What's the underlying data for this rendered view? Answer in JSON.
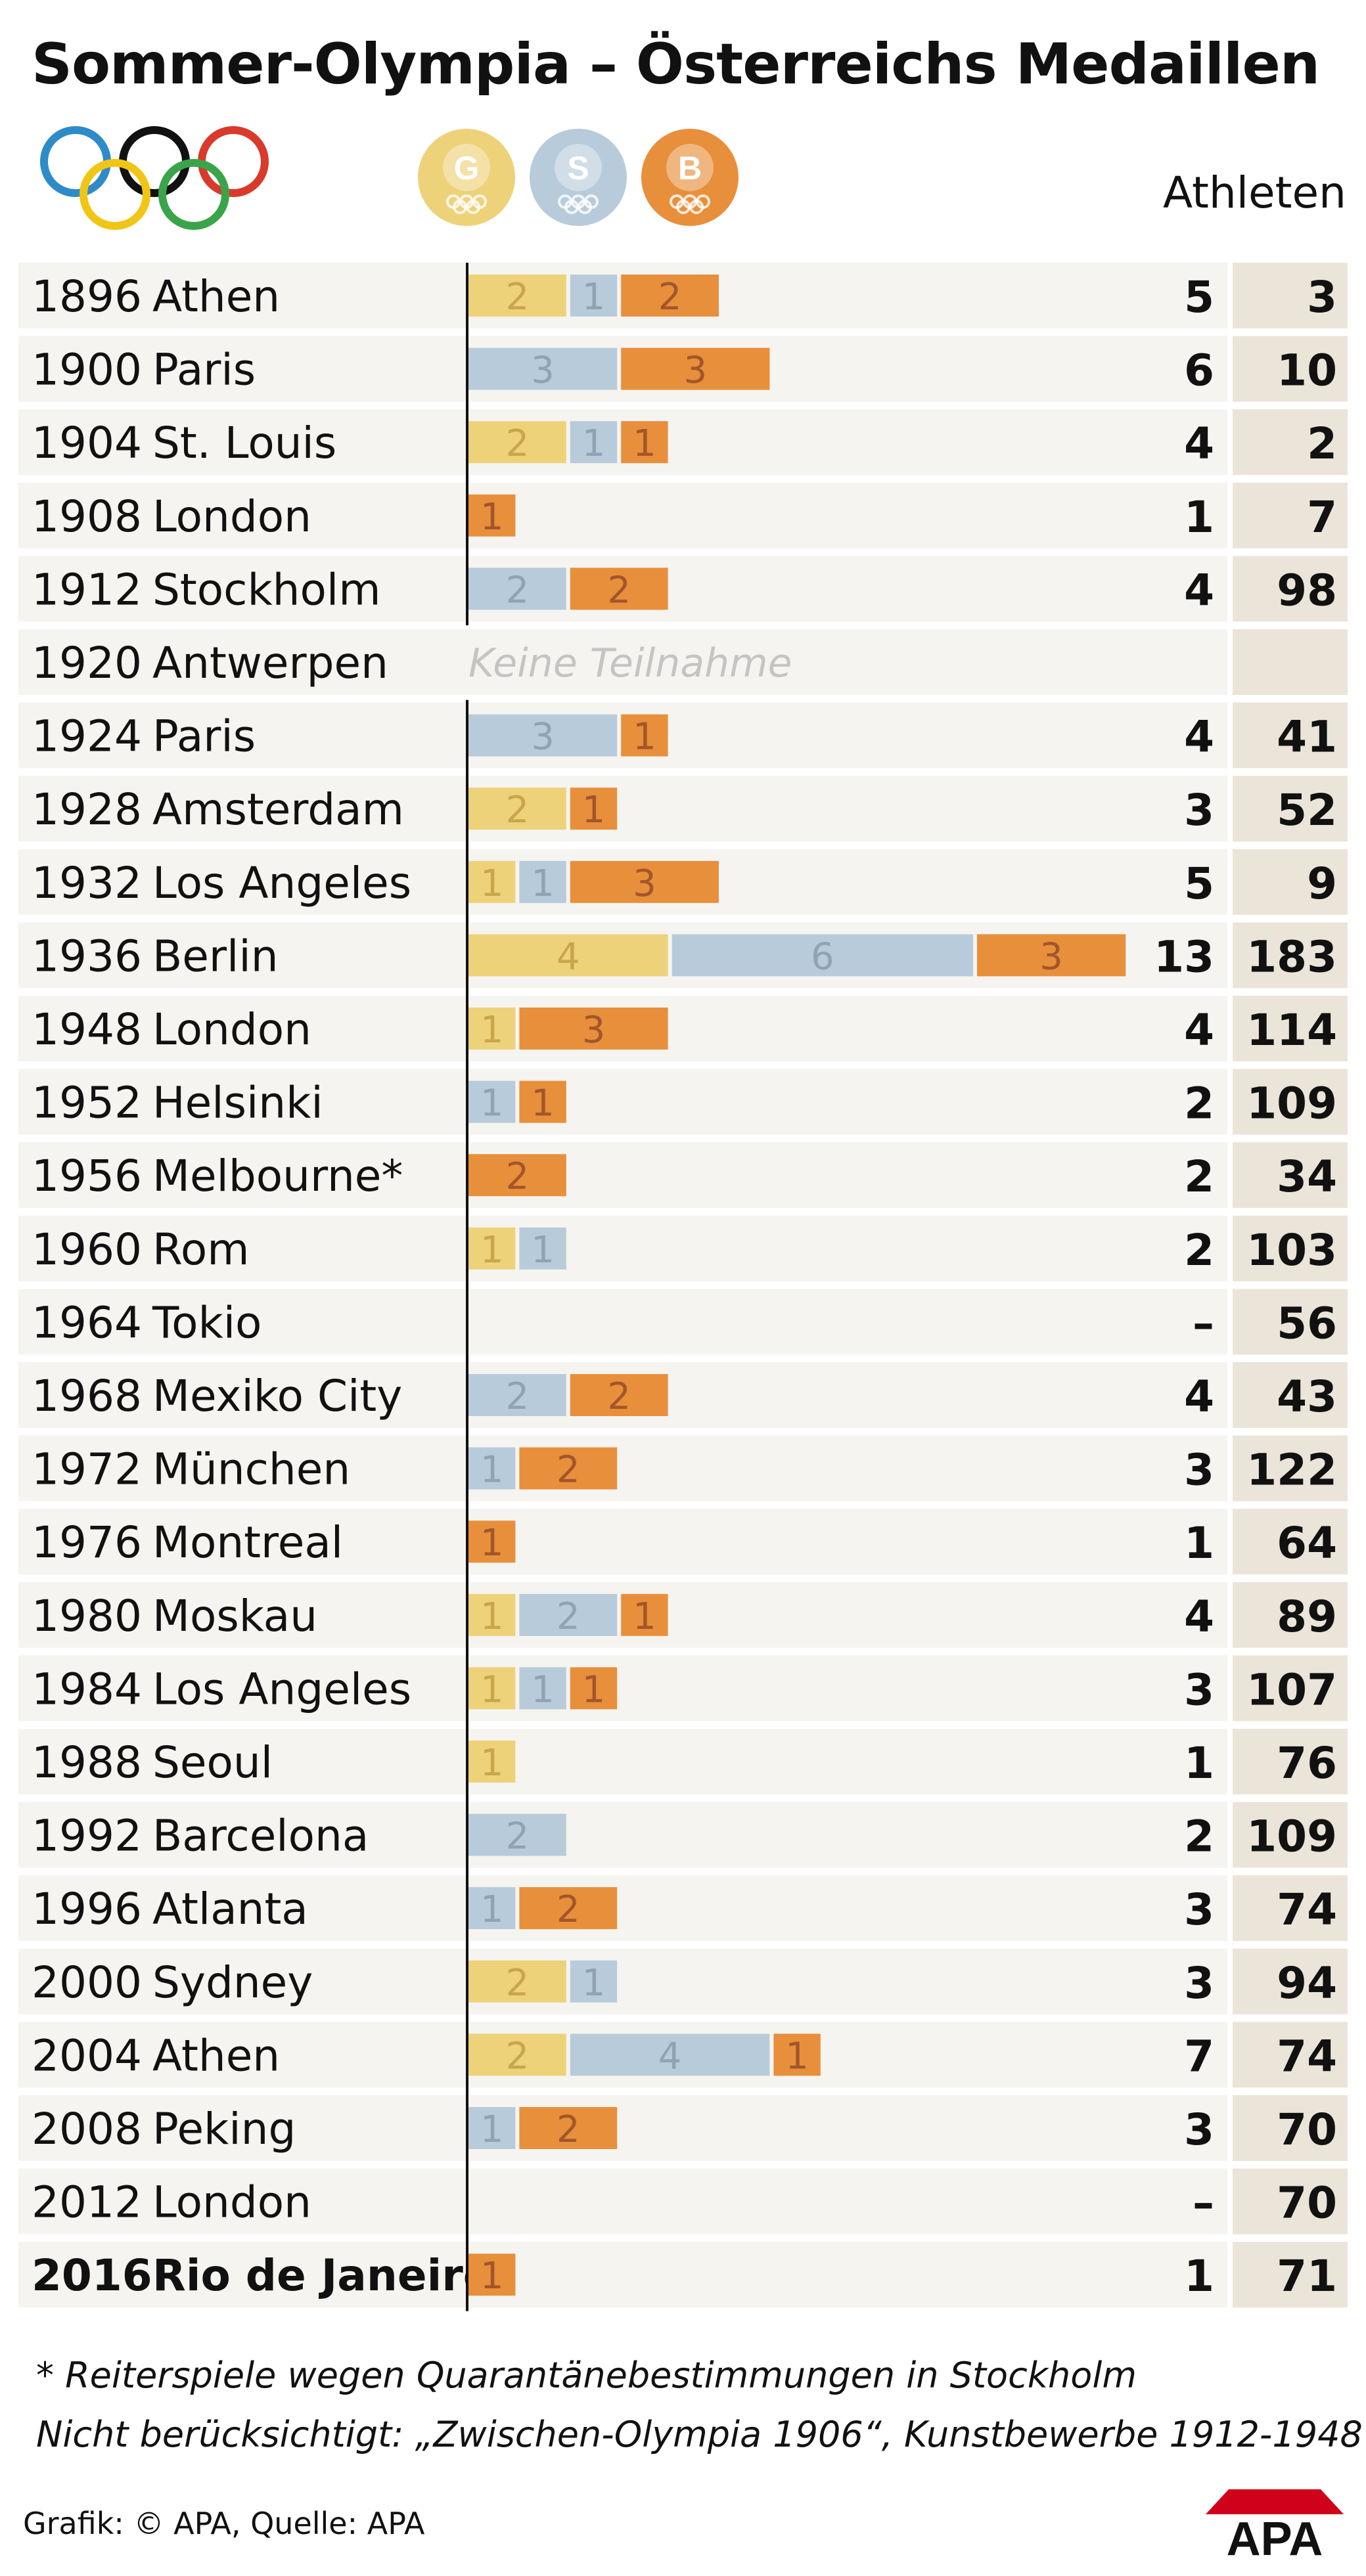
{
  "title": "Sommer-Olympia – Österreichs Medaillen",
  "legend": {
    "gold": "G",
    "silver": "S",
    "bronze": "B"
  },
  "colors": {
    "gold": "#eed27a",
    "gold_text": "#c9a64a",
    "silver": "#b8cbda",
    "silver_text": "#8ea3b3",
    "bronze": "#e88f3c",
    "bronze_text": "#a2562a",
    "row_bg": "#f6f4f0",
    "athletes_bg": "#eae5d8",
    "ring_blue": "#2e8bc9",
    "ring_black": "#111111",
    "ring_red": "#d93a2b",
    "ring_yellow": "#f1c515",
    "ring_green": "#3aa44a",
    "apa_red": "#d0021b"
  },
  "chart_data": {
    "type": "bar",
    "stacked": true,
    "orientation": "horizontal",
    "title": "Sommer-Olympia – Österreichs Medaillen",
    "columns": {
      "athletes": "Athleten"
    },
    "no_participation_label": "Keine Teilnahme",
    "rows": [
      {
        "year": "1896",
        "city": "Athen",
        "gold": 2,
        "silver": 1,
        "bronze": 2,
        "total": "5",
        "athletes": "3"
      },
      {
        "year": "1900",
        "city": "Paris",
        "gold": 0,
        "silver": 3,
        "bronze": 3,
        "total": "6",
        "athletes": "10"
      },
      {
        "year": "1904",
        "city": "St. Louis",
        "gold": 2,
        "silver": 1,
        "bronze": 1,
        "total": "4",
        "athletes": "2"
      },
      {
        "year": "1908",
        "city": "London",
        "gold": 0,
        "silver": 0,
        "bronze": 1,
        "total": "1",
        "athletes": "7"
      },
      {
        "year": "1912",
        "city": "Stockholm",
        "gold": 0,
        "silver": 2,
        "bronze": 2,
        "total": "4",
        "athletes": "98"
      },
      {
        "year": "1920",
        "city": "Antwerpen",
        "gold": 0,
        "silver": 0,
        "bronze": 0,
        "total": "",
        "athletes": "",
        "no_participation": true
      },
      {
        "year": "1924",
        "city": "Paris",
        "gold": 0,
        "silver": 3,
        "bronze": 1,
        "total": "4",
        "athletes": "41"
      },
      {
        "year": "1928",
        "city": "Amsterdam",
        "gold": 2,
        "silver": 0,
        "bronze": 1,
        "total": "3",
        "athletes": "52"
      },
      {
        "year": "1932",
        "city": "Los Angeles",
        "gold": 1,
        "silver": 1,
        "bronze": 3,
        "total": "5",
        "athletes": "9"
      },
      {
        "year": "1936",
        "city": "Berlin",
        "gold": 4,
        "silver": 6,
        "bronze": 3,
        "total": "13",
        "athletes": "183"
      },
      {
        "year": "1948",
        "city": "London",
        "gold": 1,
        "silver": 0,
        "bronze": 3,
        "total": "4",
        "athletes": "114"
      },
      {
        "year": "1952",
        "city": "Helsinki",
        "gold": 0,
        "silver": 1,
        "bronze": 1,
        "total": "2",
        "athletes": "109"
      },
      {
        "year": "1956",
        "city": "Melbourne*",
        "gold": 0,
        "silver": 0,
        "bronze": 2,
        "total": "2",
        "athletes": "34"
      },
      {
        "year": "1960",
        "city": "Rom",
        "gold": 1,
        "silver": 1,
        "bronze": 0,
        "total": "2",
        "athletes": "103"
      },
      {
        "year": "1964",
        "city": "Tokio",
        "gold": 0,
        "silver": 0,
        "bronze": 0,
        "total": "–",
        "athletes": "56"
      },
      {
        "year": "1968",
        "city": "Mexiko City",
        "gold": 0,
        "silver": 2,
        "bronze": 2,
        "total": "4",
        "athletes": "43"
      },
      {
        "year": "1972",
        "city": "München",
        "gold": 0,
        "silver": 1,
        "bronze": 2,
        "total": "3",
        "athletes": "122"
      },
      {
        "year": "1976",
        "city": "Montreal",
        "gold": 0,
        "silver": 0,
        "bronze": 1,
        "total": "1",
        "athletes": "64"
      },
      {
        "year": "1980",
        "city": "Moskau",
        "gold": 1,
        "silver": 2,
        "bronze": 1,
        "total": "4",
        "athletes": "89"
      },
      {
        "year": "1984",
        "city": "Los Angeles",
        "gold": 1,
        "silver": 1,
        "bronze": 1,
        "total": "3",
        "athletes": "107"
      },
      {
        "year": "1988",
        "city": "Seoul",
        "gold": 1,
        "silver": 0,
        "bronze": 0,
        "total": "1",
        "athletes": "76"
      },
      {
        "year": "1992",
        "city": "Barcelona",
        "gold": 0,
        "silver": 2,
        "bronze": 0,
        "total": "2",
        "athletes": "109"
      },
      {
        "year": "1996",
        "city": "Atlanta",
        "gold": 0,
        "silver": 1,
        "bronze": 2,
        "total": "3",
        "athletes": "74"
      },
      {
        "year": "2000",
        "city": "Sydney",
        "gold": 2,
        "silver": 1,
        "bronze": 0,
        "total": "3",
        "athletes": "94"
      },
      {
        "year": "2004",
        "city": "Athen",
        "gold": 2,
        "silver": 4,
        "bronze": 1,
        "total": "7",
        "athletes": "74"
      },
      {
        "year": "2008",
        "city": "Peking",
        "gold": 0,
        "silver": 1,
        "bronze": 2,
        "total": "3",
        "athletes": "70"
      },
      {
        "year": "2012",
        "city": "London",
        "gold": 0,
        "silver": 0,
        "bronze": 0,
        "total": "–",
        "athletes": "70"
      },
      {
        "year": "2016",
        "city": "Rio de Janeiro",
        "gold": 0,
        "silver": 0,
        "bronze": 1,
        "total": "1",
        "athletes": "71",
        "highlight": true
      }
    ]
  },
  "footnote": "* Reiterspiele wegen Quarantänebestimmungen in Stockholm",
  "note": "Nicht berücksichtigt: „Zwischen-Olympia 1906“, Kunstbewerbe 1912-1948",
  "source": "Grafik: © APA, Quelle: APA",
  "logo_text": "APA"
}
